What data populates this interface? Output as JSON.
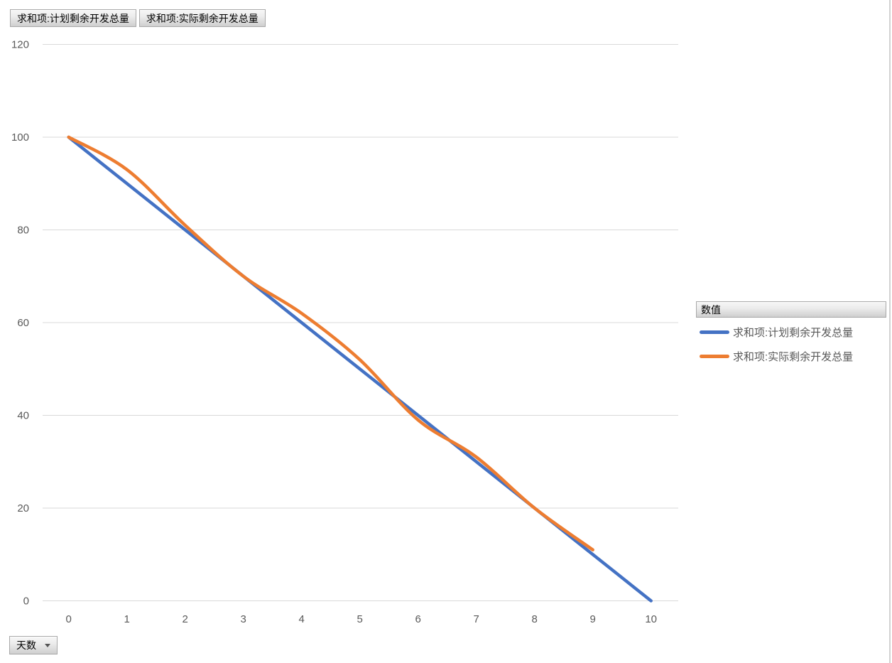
{
  "field_buttons": {
    "planned": "求和项:计划剩余开发总量",
    "actual": "求和项:实际剩余开发总量"
  },
  "axis_field": {
    "label": "天数"
  },
  "legend": {
    "header": "数值",
    "items": [
      {
        "label": "求和项:计划剩余开发总量",
        "color": "#4472C4"
      },
      {
        "label": "求和项:实际剩余开发总量",
        "color": "#ED7D31"
      }
    ]
  },
  "chart_data": {
    "type": "line",
    "title": "",
    "xlabel": "天数",
    "ylabel": "",
    "x_ticks": [
      0,
      1,
      2,
      3,
      4,
      5,
      6,
      7,
      8,
      9,
      10
    ],
    "ylim": [
      0,
      120
    ],
    "ytick_interval": 20,
    "grid": true,
    "smoothed_lines": true,
    "legend_position": "right",
    "series": [
      {
        "name": "求和项:计划剩余开发总量",
        "color": "#4472C4",
        "x": [
          0,
          1,
          2,
          3,
          4,
          5,
          6,
          7,
          8,
          9,
          10
        ],
        "values": [
          100,
          90,
          80,
          70,
          60,
          50,
          40,
          30,
          20,
          10,
          0
        ]
      },
      {
        "name": "求和项:实际剩余开发总量",
        "color": "#ED7D31",
        "x": [
          0,
          1,
          2,
          3,
          4,
          5,
          6,
          7,
          8,
          9
        ],
        "values": [
          100,
          93,
          81,
          70,
          62,
          52,
          39,
          31,
          20,
          11
        ]
      }
    ],
    "colors": {
      "gridline": "#D9D9D9",
      "axis_text": "#595959"
    }
  }
}
